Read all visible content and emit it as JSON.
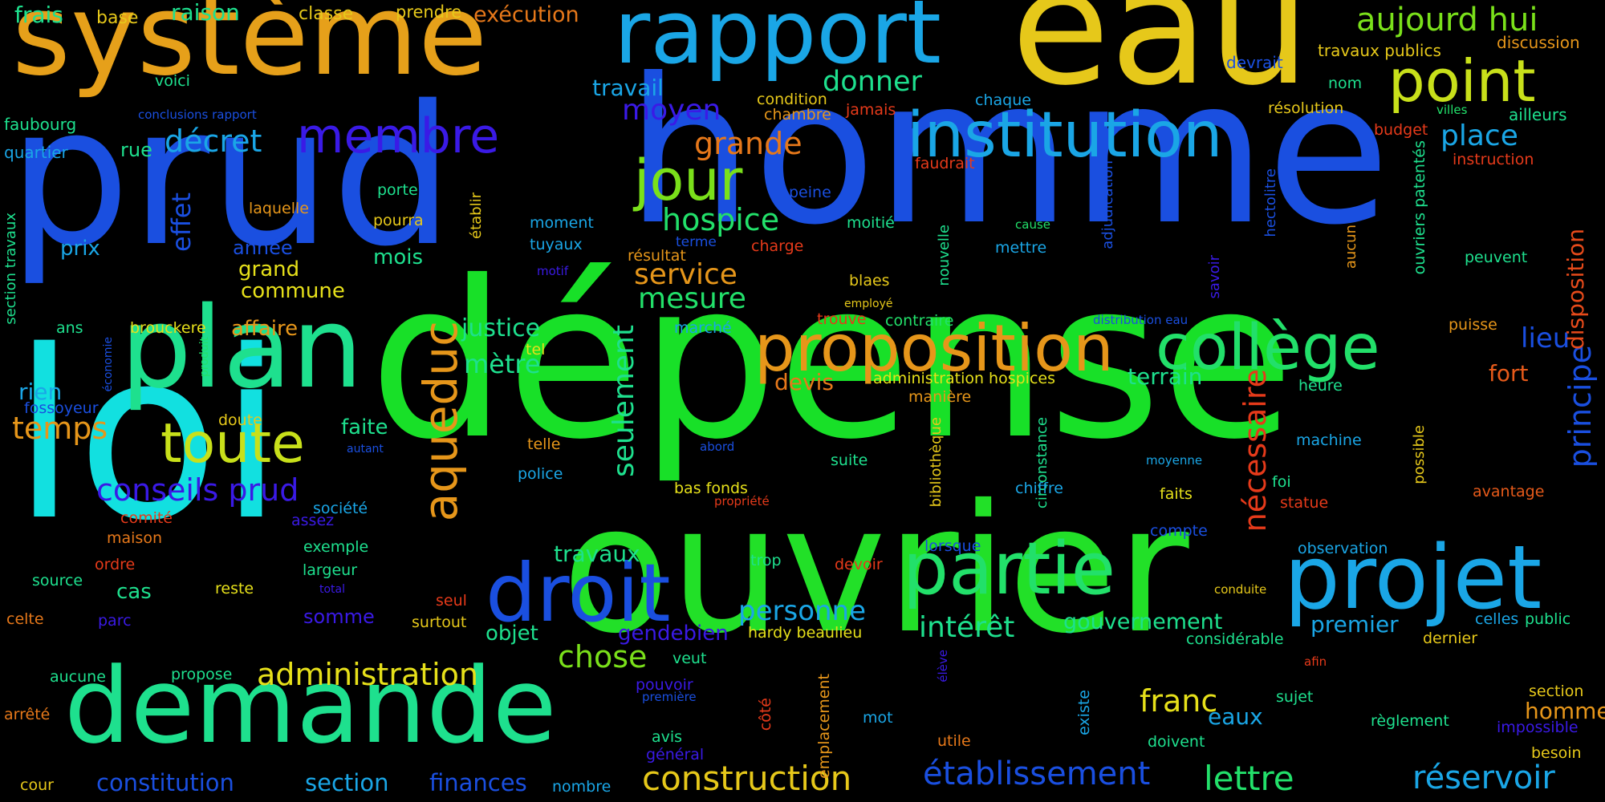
{
  "background": "#000000",
  "palette": {
    "blue": "#1a4fe0",
    "cyan": "#12e0e0",
    "sky": "#1aa6e6",
    "green": "#18e028",
    "lime": "#22e06a",
    "teal": "#1ee08e",
    "yellow": "#e6c81a",
    "chartreuse": "#c8e01a",
    "orange": "#e6961a",
    "red": "#e63a1a",
    "violet": "#3a1ae6"
  },
  "words": [
    {
      "text": "prud",
      "color": "#1a4fe0"
    },
    {
      "text": "homme",
      "color": "#1a4fe0"
    },
    {
      "text": "dépense",
      "color": "#18e028"
    },
    {
      "text": "loi",
      "color": "#12e0e0"
    },
    {
      "text": "ouvrier",
      "color": "#22e028"
    },
    {
      "text": "eau",
      "color": "#e6c81a"
    },
    {
      "text": "système",
      "color": "#e6a01a"
    },
    {
      "text": "rapport",
      "color": "#1aa6e6"
    },
    {
      "text": "demande",
      "color": "#1ee08e"
    },
    {
      "text": "plan",
      "color": "#1ee08e"
    },
    {
      "text": "projet",
      "color": "#1aa6e6"
    },
    {
      "text": "partie",
      "color": "#22e06a"
    },
    {
      "text": "droit",
      "color": "#1a4fe0"
    },
    {
      "text": "proposition",
      "color": "#e6961a"
    },
    {
      "text": "collège",
      "color": "#22e06a"
    },
    {
      "text": "institution",
      "color": "#1aa6e6"
    },
    {
      "text": "jour",
      "color": "#7ae01a"
    },
    {
      "text": "point",
      "color": "#c8e01a"
    },
    {
      "text": "membre",
      "color": "#3a1ae6"
    },
    {
      "text": "toute",
      "color": "#c8e01a"
    },
    {
      "text": "aqueduc",
      "color": "#e6961a"
    },
    {
      "text": "aujourd hui",
      "color": "#7ae01a"
    },
    {
      "text": "conseils prud",
      "color": "#3a1ae6"
    },
    {
      "text": "administration",
      "color": "#e6e01a"
    },
    {
      "text": "construction",
      "color": "#e6c81a"
    },
    {
      "text": "établissement",
      "color": "#1a4fe0"
    },
    {
      "text": "lettre",
      "color": "#22e06a"
    },
    {
      "text": "réservoir",
      "color": "#1aa6e6"
    },
    {
      "text": "nécessaire",
      "color": "#e63a1a"
    },
    {
      "text": "principe",
      "color": "#1a4fe0"
    },
    {
      "text": "seulement",
      "color": "#1ee08e"
    },
    {
      "text": "hospice",
      "color": "#22e06a"
    },
    {
      "text": "mesure",
      "color": "#22e06a"
    },
    {
      "text": "service",
      "color": "#e6961a"
    },
    {
      "text": "intérêt",
      "color": "#1ee08e"
    },
    {
      "text": "chose",
      "color": "#7ae01a"
    },
    {
      "text": "personne",
      "color": "#1aa6e6"
    },
    {
      "text": "franc",
      "color": "#e6e01a"
    },
    {
      "text": "gouvernement",
      "color": "#1ee08e"
    },
    {
      "text": "constitution",
      "color": "#1a4fe0"
    },
    {
      "text": "section",
      "color": "#1aa6e6"
    },
    {
      "text": "finances",
      "color": "#1a4fe0"
    },
    {
      "text": "temps",
      "color": "#e6961a"
    },
    {
      "text": "grande",
      "color": "#e6781a"
    },
    {
      "text": "moyen",
      "color": "#3a1ae6"
    },
    {
      "text": "donner",
      "color": "#1ee08e"
    },
    {
      "text": "décret",
      "color": "#1aa6e6"
    },
    {
      "text": "place",
      "color": "#1aa6e6"
    },
    {
      "text": "lieu",
      "color": "#1a4fe0"
    },
    {
      "text": "disposition",
      "color": "#e64a1a"
    },
    {
      "text": "effet",
      "color": "#1a4fe0"
    },
    {
      "text": "mètre",
      "color": "#1ee08e"
    },
    {
      "text": "justice",
      "color": "#1ee08e"
    },
    {
      "text": "terrain",
      "color": "#1ee08e"
    },
    {
      "text": "devis",
      "color": "#e6781a"
    },
    {
      "text": "fort",
      "color": "#e65a1a"
    },
    {
      "text": "travail",
      "color": "#1aa6e6"
    },
    {
      "text": "travaux",
      "color": "#1ee08e"
    },
    {
      "text": "premier",
      "color": "#1aa6e6"
    },
    {
      "text": "homme",
      "color": "#e6961a"
    },
    {
      "text": "eaux",
      "color": "#1aa6e6"
    },
    {
      "text": "frais",
      "color": "#1ee08e"
    },
    {
      "text": "base",
      "color": "#e6c81a"
    },
    {
      "text": "raison",
      "color": "#1ee08e"
    },
    {
      "text": "classe",
      "color": "#e6c81a"
    },
    {
      "text": "prendre",
      "color": "#e6c81a"
    },
    {
      "text": "exécution",
      "color": "#e6781a"
    },
    {
      "text": "travaux publics",
      "color": "#e6c81a"
    },
    {
      "text": "discussion",
      "color": "#e6961a"
    },
    {
      "text": "devrait",
      "color": "#1a4fe0"
    },
    {
      "text": "nom",
      "color": "#1ee08e"
    },
    {
      "text": "ailleurs",
      "color": "#1ee08e"
    },
    {
      "text": "voici",
      "color": "#1ee08e"
    },
    {
      "text": "conclusions rapport",
      "color": "#1a4fe0"
    },
    {
      "text": "faubourg",
      "color": "#1ee08e"
    },
    {
      "text": "quartier",
      "color": "#1aa6e6"
    },
    {
      "text": "rue",
      "color": "#1ee08e"
    },
    {
      "text": "condition",
      "color": "#e6c81a"
    },
    {
      "text": "chambre",
      "color": "#e6961a"
    },
    {
      "text": "jamais",
      "color": "#e63a1a"
    },
    {
      "text": "chaque",
      "color": "#1aa6e6"
    },
    {
      "text": "résolution",
      "color": "#e6c81a"
    },
    {
      "text": "villes",
      "color": "#22e06a"
    },
    {
      "text": "budget",
      "color": "#e63a1a"
    },
    {
      "text": "instruction",
      "color": "#e63a1a"
    },
    {
      "text": "faudrait",
      "color": "#e63a1a"
    },
    {
      "text": "ouvriers patentés",
      "color": "#1ee08e"
    },
    {
      "text": "hectolitre",
      "color": "#1a4fe0"
    },
    {
      "text": "porte",
      "color": "#1ee08e"
    },
    {
      "text": "laquelle",
      "color": "#e6961a"
    },
    {
      "text": "pourra",
      "color": "#e6c81a"
    },
    {
      "text": "établir",
      "color": "#e6c81a"
    },
    {
      "text": "peine",
      "color": "#1a4fe0"
    },
    {
      "text": "moment",
      "color": "#1aa6e6"
    },
    {
      "text": "tuyaux",
      "color": "#1aa6e6"
    },
    {
      "text": "moitié",
      "color": "#1ee08e"
    },
    {
      "text": "cause",
      "color": "#22e06a"
    },
    {
      "text": "mettre",
      "color": "#1aa6e6"
    },
    {
      "text": "adjudication",
      "color": "#1a4fe0"
    },
    {
      "text": "savoir",
      "color": "#3a1ae6"
    },
    {
      "text": "aucun",
      "color": "#e6961a"
    },
    {
      "text": "peuvent",
      "color": "#1ee08e"
    },
    {
      "text": "prix",
      "color": "#1aa6e6"
    },
    {
      "text": "année",
      "color": "#1a4fe0"
    },
    {
      "text": "grand",
      "color": "#e6e01a"
    },
    {
      "text": "commune",
      "color": "#e6e01a"
    },
    {
      "text": "mois",
      "color": "#1ee08e"
    },
    {
      "text": "terme",
      "color": "#1a4fe0"
    },
    {
      "text": "résultat",
      "color": "#e6961a"
    },
    {
      "text": "charge",
      "color": "#e63a1a"
    },
    {
      "text": "motif",
      "color": "#3a1ae6"
    },
    {
      "text": "blaes",
      "color": "#e6c81a"
    },
    {
      "text": "nouvelle",
      "color": "#1ee08e"
    },
    {
      "text": "employé",
      "color": "#e6c81a"
    },
    {
      "text": "section travaux",
      "color": "#1ee08e"
    },
    {
      "text": "ans",
      "color": "#1ee08e"
    },
    {
      "text": "brouckere",
      "color": "#e6e01a"
    },
    {
      "text": "affaire",
      "color": "#e6961a"
    },
    {
      "text": "trouve",
      "color": "#e63a1a"
    },
    {
      "text": "contraire",
      "color": "#22e06a"
    },
    {
      "text": "distribution eau",
      "color": "#1a4fe0"
    },
    {
      "text": "puisse",
      "color": "#e6961a"
    },
    {
      "text": "marché",
      "color": "#1aa6e6"
    },
    {
      "text": "économie",
      "color": "#1a4fe0"
    },
    {
      "text": "produit",
      "color": "#22e06a"
    },
    {
      "text": "rien",
      "color": "#1aa6e6"
    },
    {
      "text": "fossoyeur",
      "color": "#1a4fe0"
    },
    {
      "text": "tel",
      "color": "#e6e01a"
    },
    {
      "text": "administration hospices",
      "color": "#e6e01a"
    },
    {
      "text": "manière",
      "color": "#e6961a"
    },
    {
      "text": "heure",
      "color": "#1ee08e"
    },
    {
      "text": "doute",
      "color": "#e6c81a"
    },
    {
      "text": "faite",
      "color": "#1ee08e"
    },
    {
      "text": "autant",
      "color": "#1a4fe0"
    },
    {
      "text": "telle",
      "color": "#e6961a"
    },
    {
      "text": "abord",
      "color": "#1a4fe0"
    },
    {
      "text": "police",
      "color": "#1aa6e6"
    },
    {
      "text": "suite",
      "color": "#1ee08e"
    },
    {
      "text": "bibliothèque",
      "color": "#e6c81a"
    },
    {
      "text": "circonstance",
      "color": "#1ee08e"
    },
    {
      "text": "moyenne",
      "color": "#1aa6e6"
    },
    {
      "text": "machine",
      "color": "#1aa6e6"
    },
    {
      "text": "possible",
      "color": "#e6c81a"
    },
    {
      "text": "chiffre",
      "color": "#1aa6e6"
    },
    {
      "text": "foi",
      "color": "#1ee08e"
    },
    {
      "text": "faits",
      "color": "#e6e01a"
    },
    {
      "text": "statue",
      "color": "#e63a1a"
    },
    {
      "text": "avantage",
      "color": "#e65a1a"
    },
    {
      "text": "bas fonds",
      "color": "#e6e01a"
    },
    {
      "text": "propriété",
      "color": "#e63a1a"
    },
    {
      "text": "comité",
      "color": "#e63a1a"
    },
    {
      "text": "société",
      "color": "#1aa6e6"
    },
    {
      "text": "assez",
      "color": "#3a1ae6"
    },
    {
      "text": "maison",
      "color": "#e6781a"
    },
    {
      "text": "exemple",
      "color": "#1ee08e"
    },
    {
      "text": "largeur",
      "color": "#1ee08e"
    },
    {
      "text": "lorsque",
      "color": "#1a4fe0"
    },
    {
      "text": "compte",
      "color": "#1a4fe0"
    },
    {
      "text": "observation",
      "color": "#1aa6e6"
    },
    {
      "text": "ordre",
      "color": "#e63a1a"
    },
    {
      "text": "cas",
      "color": "#1ee08e"
    },
    {
      "text": "reste",
      "color": "#e6e01a"
    },
    {
      "text": "total",
      "color": "#3a1ae6"
    },
    {
      "text": "devoir",
      "color": "#e63a1a"
    },
    {
      "text": "trop",
      "color": "#1ee08e"
    },
    {
      "text": "source",
      "color": "#1ee08e"
    },
    {
      "text": "celte",
      "color": "#e6781a"
    },
    {
      "text": "parc",
      "color": "#3a1ae6"
    },
    {
      "text": "somme",
      "color": "#3a1ae6"
    },
    {
      "text": "seul",
      "color": "#e63a1a"
    },
    {
      "text": "surtout",
      "color": "#e6c81a"
    },
    {
      "text": "objet",
      "color": "#1ee08e"
    },
    {
      "text": "gendebien",
      "color": "#3a1ae6"
    },
    {
      "text": "hardy beaulieu",
      "color": "#e6e01a"
    },
    {
      "text": "conduite",
      "color": "#e6c81a"
    },
    {
      "text": "considérable",
      "color": "#1ee08e"
    },
    {
      "text": "celles",
      "color": "#1aa6e6"
    },
    {
      "text": "public",
      "color": "#1ee08e"
    },
    {
      "text": "dernier",
      "color": "#e6c81a"
    },
    {
      "text": "aucune",
      "color": "#1ee08e"
    },
    {
      "text": "propose",
      "color": "#1ee08e"
    },
    {
      "text": "veut",
      "color": "#1ee08e"
    },
    {
      "text": "pouvoir",
      "color": "#3a1ae6"
    },
    {
      "text": "première",
      "color": "#1a4fe0"
    },
    {
      "text": "afin",
      "color": "#e63a1a"
    },
    {
      "text": "élève",
      "color": "#3a1ae6"
    },
    {
      "text": "arrêté",
      "color": "#e6781a"
    },
    {
      "text": "avis",
      "color": "#1ee08e"
    },
    {
      "text": "général",
      "color": "#3a1ae6"
    },
    {
      "text": "côté",
      "color": "#e63a1a"
    },
    {
      "text": "emplacement",
      "color": "#e6961a"
    },
    {
      "text": "mot",
      "color": "#1aa6e6"
    },
    {
      "text": "utile",
      "color": "#e6781a"
    },
    {
      "text": "existe",
      "color": "#1aa6e6"
    },
    {
      "text": "doivent",
      "color": "#1ee08e"
    },
    {
      "text": "sujet",
      "color": "#1ee08e"
    },
    {
      "text": "règlement",
      "color": "#1ee08e"
    },
    {
      "text": "section",
      "color": "#e6c81a"
    },
    {
      "text": "impossible",
      "color": "#3a1ae6"
    },
    {
      "text": "besoin",
      "color": "#e6c81a"
    },
    {
      "text": "cour",
      "color": "#e6c81a"
    },
    {
      "text": "nombre",
      "color": "#1aa6e6"
    }
  ]
}
